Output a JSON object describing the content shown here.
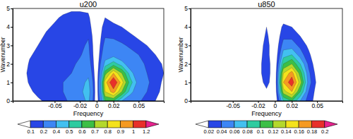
{
  "chart_data": [
    {
      "type": "contour",
      "title": "u200",
      "xlabel": "Frequency",
      "ylabel": "Wavenumber",
      "x": [
        -0.1,
        -0.09,
        -0.08,
        -0.07,
        -0.06,
        -0.05,
        -0.04,
        -0.03,
        -0.02,
        -0.01,
        0,
        0.01,
        0.02,
        0.03,
        0.04,
        0.05,
        0.06,
        0.07,
        0.08
      ],
      "y": [
        0,
        0.5,
        1,
        1.5,
        2,
        2.5,
        3,
        3.5,
        4,
        4.5,
        5
      ],
      "z": [
        [
          0,
          0,
          0.02,
          0.08,
          0.12,
          0.15,
          0.18,
          0.22,
          0.3,
          0.45,
          0,
          0.6,
          0.6,
          0.4,
          0.3,
          0.22,
          0.15,
          0.1,
          0.05
        ],
        [
          0,
          0.02,
          0.08,
          0.13,
          0.15,
          0.17,
          0.2,
          0.25,
          0.35,
          0.5,
          0,
          0.8,
          0.95,
          0.7,
          0.45,
          0.3,
          0.2,
          0.13,
          0.07
        ],
        [
          0,
          0.05,
          0.11,
          0.14,
          0.16,
          0.18,
          0.2,
          0.25,
          0.32,
          0.45,
          0,
          0.85,
          1.12,
          0.85,
          0.55,
          0.35,
          0.22,
          0.15,
          0.08
        ],
        [
          0,
          0.06,
          0.12,
          0.14,
          0.15,
          0.16,
          0.18,
          0.2,
          0.26,
          0.35,
          0,
          0.65,
          0.9,
          0.7,
          0.45,
          0.3,
          0.2,
          0.15,
          0.1
        ],
        [
          0,
          0.04,
          0.11,
          0.13,
          0.14,
          0.15,
          0.16,
          0.18,
          0.22,
          0.28,
          0,
          0.45,
          0.55,
          0.45,
          0.32,
          0.24,
          0.18,
          0.13,
          0.09
        ],
        [
          0,
          0.02,
          0.09,
          0.12,
          0.13,
          0.14,
          0.15,
          0.16,
          0.19,
          0.24,
          0,
          0.32,
          0.36,
          0.3,
          0.24,
          0.2,
          0.15,
          0.1,
          0.05
        ],
        [
          0,
          0,
          0.06,
          0.1,
          0.12,
          0.13,
          0.14,
          0.15,
          0.17,
          0.22,
          0,
          0.25,
          0.25,
          0.22,
          0.18,
          0.14,
          0.1,
          0.06,
          0
        ],
        [
          0,
          0,
          0.03,
          0.08,
          0.11,
          0.12,
          0.13,
          0.14,
          0.15,
          0.19,
          0,
          0.19,
          0.18,
          0.15,
          0.12,
          0.08,
          0.04,
          0,
          0
        ],
        [
          0,
          0,
          0,
          0.05,
          0.09,
          0.11,
          0.12,
          0.13,
          0.14,
          0.15,
          0,
          0.15,
          0.13,
          0.1,
          0.06,
          0.02,
          0,
          0,
          0
        ],
        [
          0,
          0,
          0,
          0.02,
          0.06,
          0.09,
          0.11,
          0.12,
          0.12,
          0.12,
          0,
          0.1,
          0.06,
          0.03,
          0,
          0,
          0,
          0,
          0
        ],
        [
          0,
          0,
          0,
          0,
          0.02,
          0.05,
          0.08,
          0.09,
          0.09,
          0.08,
          0,
          0.03,
          0,
          0,
          0,
          0,
          0,
          0,
          0
        ]
      ],
      "xlim": [
        -0.1,
        0.08
      ],
      "ylim": [
        0,
        5
      ],
      "xticks": [
        -0.05,
        -0.02,
        0,
        0.02,
        0.05
      ],
      "yticks": [
        0,
        1,
        2,
        3,
        4,
        5
      ],
      "colorbar": {
        "ticks": [
          0.1,
          0.2,
          0.4,
          0.5,
          0.6,
          0.7,
          0.8,
          0.9,
          1,
          1.2
        ],
        "colors": [
          "#ffffff",
          "#2846e6",
          "#3d86f5",
          "#42c0f0",
          "#2ecba0",
          "#3cbf46",
          "#b4d82c",
          "#f4e21c",
          "#f59a22",
          "#e8302a",
          "#e8228e"
        ]
      }
    },
    {
      "type": "contour",
      "title": "u850",
      "xlabel": "Frequency",
      "ylabel": "Wavenumber",
      "x": [
        -0.1,
        -0.09,
        -0.08,
        -0.07,
        -0.06,
        -0.05,
        -0.04,
        -0.03,
        -0.02,
        -0.01,
        0,
        0.01,
        0.02,
        0.03,
        0.04,
        0.05,
        0.06,
        0.07,
        0.08
      ],
      "y": [
        0,
        0.5,
        1,
        1.5,
        2,
        2.5,
        3,
        3.5,
        4,
        4.5,
        5
      ],
      "z": [
        [
          0,
          0,
          0,
          0,
          0,
          0,
          0,
          0,
          0,
          0.01,
          0,
          0.08,
          0.1,
          0.06,
          0.03,
          0.01,
          0,
          0,
          0
        ],
        [
          0,
          0,
          0,
          0,
          0,
          0,
          0,
          0,
          0,
          0.015,
          0,
          0.13,
          0.16,
          0.1,
          0.04,
          0.01,
          0,
          0,
          0
        ],
        [
          0,
          0,
          0,
          0,
          0,
          0,
          0,
          0,
          0.005,
          0.03,
          0,
          0.16,
          0.195,
          0.13,
          0.05,
          0.015,
          0,
          0,
          0
        ],
        [
          0,
          0,
          0,
          0,
          0,
          0,
          0,
          0,
          0.01,
          0.035,
          0,
          0.14,
          0.17,
          0.11,
          0.045,
          0.01,
          0,
          0,
          0
        ],
        [
          0,
          0,
          0,
          0,
          0,
          0,
          0,
          0,
          0.01,
          0.035,
          0,
          0.1,
          0.12,
          0.08,
          0.035,
          0.005,
          0,
          0,
          0
        ],
        [
          0,
          0,
          0,
          0,
          0,
          0,
          0,
          0,
          0.01,
          0.03,
          0,
          0.07,
          0.08,
          0.05,
          0.025,
          0,
          0,
          0,
          0
        ],
        [
          0,
          0,
          0,
          0,
          0,
          0,
          0,
          0,
          0.005,
          0.03,
          0,
          0.05,
          0.05,
          0.035,
          0.015,
          0,
          0,
          0,
          0
        ],
        [
          0,
          0,
          0,
          0,
          0,
          0,
          0,
          0,
          0,
          0.025,
          0,
          0.035,
          0.035,
          0.02,
          0.005,
          0,
          0,
          0,
          0
        ],
        [
          0,
          0,
          0,
          0,
          0,
          0,
          0,
          0,
          0,
          0.02,
          0,
          0.025,
          0.02,
          0.01,
          0,
          0,
          0,
          0,
          0
        ],
        [
          0,
          0,
          0,
          0,
          0,
          0,
          0,
          0,
          0,
          0.005,
          0,
          0.01,
          0.005,
          0,
          0,
          0,
          0,
          0,
          0
        ],
        [
          0,
          0,
          0,
          0,
          0,
          0,
          0,
          0,
          0,
          0,
          0,
          0,
          0,
          0,
          0,
          0,
          0,
          0,
          0
        ]
      ],
      "xlim": [
        -0.1,
        0.08
      ],
      "ylim": [
        0,
        5
      ],
      "xticks": [
        -0.05,
        -0.02,
        0,
        0.02,
        0.05
      ],
      "yticks": [
        0,
        1,
        2,
        3,
        4,
        5
      ],
      "colorbar": {
        "ticks": [
          0.02,
          0.04,
          0.06,
          0.08,
          0.1,
          0.12,
          0.14,
          0.16,
          0.18,
          0.2
        ],
        "colors": [
          "#ffffff",
          "#2846e6",
          "#3d86f5",
          "#42c0f0",
          "#2ecba0",
          "#3cbf46",
          "#b4d82c",
          "#f4e21c",
          "#f59a22",
          "#e8302a",
          "#e8228e"
        ]
      }
    }
  ]
}
